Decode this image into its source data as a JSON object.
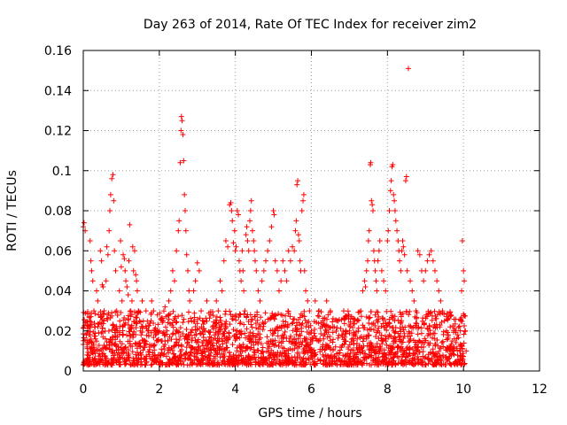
{
  "chart_data": {
    "type": "scatter",
    "title": "Day 263 of 2014, Rate Of TEC Index for receiver zim2",
    "xlabel": "GPS time / hours",
    "ylabel": "ROTI / TECUs",
    "xlim": [
      0,
      12
    ],
    "ylim": [
      0,
      0.16
    ],
    "xticks": [
      0,
      2,
      4,
      6,
      8,
      10,
      12
    ],
    "yticks": [
      0,
      0.02,
      0.04,
      0.06,
      0.08,
      0.1,
      0.12,
      0.14,
      0.16
    ],
    "xtick_labels": [
      "0",
      "2",
      "4",
      "6",
      "8",
      "10",
      "12"
    ],
    "ytick_labels": [
      "0",
      "0.02",
      "0.04",
      "0.06",
      "0.08",
      "0.1",
      "0.12",
      "0.14",
      "0.16"
    ],
    "grid": true,
    "marker": "+",
    "color": "#ff0000",
    "series": [
      {
        "name": "ROTI",
        "points": [
          [
            0.0,
            0.072
          ],
          [
            0.02,
            0.074
          ],
          [
            0.05,
            0.07
          ],
          [
            0.08,
            0.018
          ],
          [
            0.1,
            0.012
          ],
          [
            0.12,
            0.02
          ],
          [
            0.15,
            0.014
          ],
          [
            0.18,
            0.065
          ],
          [
            0.2,
            0.055
          ],
          [
            0.22,
            0.05
          ],
          [
            0.25,
            0.045
          ],
          [
            0.28,
            0.03
          ],
          [
            0.3,
            0.022
          ],
          [
            0.32,
            0.016
          ],
          [
            0.35,
            0.04
          ],
          [
            0.38,
            0.035
          ],
          [
            0.4,
            0.028
          ],
          [
            0.42,
            0.01
          ],
          [
            0.45,
            0.06
          ],
          [
            0.48,
            0.055
          ],
          [
            0.5,
            0.043
          ],
          [
            0.52,
            0.042
          ],
          [
            0.55,
            0.03
          ],
          [
            0.58,
            0.005
          ],
          [
            0.6,
            0.045
          ],
          [
            0.62,
            0.062
          ],
          [
            0.65,
            0.058
          ],
          [
            0.68,
            0.07
          ],
          [
            0.7,
            0.08
          ],
          [
            0.72,
            0.088
          ],
          [
            0.75,
            0.096
          ],
          [
            0.78,
            0.098
          ],
          [
            0.8,
            0.085
          ],
          [
            0.82,
            0.06
          ],
          [
            0.85,
            0.05
          ],
          [
            0.88,
            0.03
          ],
          [
            0.9,
            0.02
          ],
          [
            0.92,
            0.012
          ],
          [
            0.95,
            0.04
          ],
          [
            0.98,
            0.065
          ],
          [
            1.0,
            0.052
          ],
          [
            1.02,
            0.035
          ],
          [
            1.05,
            0.058
          ],
          [
            1.08,
            0.056
          ],
          [
            1.1,
            0.05
          ],
          [
            1.12,
            0.045
          ],
          [
            1.15,
            0.042
          ],
          [
            1.18,
            0.038
          ],
          [
            1.2,
            0.055
          ],
          [
            1.22,
            0.073
          ],
          [
            1.25,
            0.03
          ],
          [
            1.28,
            0.035
          ],
          [
            1.3,
            0.062
          ],
          [
            1.32,
            0.05
          ],
          [
            1.35,
            0.06
          ],
          [
            1.38,
            0.048
          ],
          [
            1.4,
            0.045
          ],
          [
            1.42,
            0.04
          ],
          [
            1.45,
            0.03
          ],
          [
            1.48,
            0.025
          ],
          [
            1.5,
            0.02
          ],
          [
            1.52,
            0.018
          ],
          [
            1.55,
            0.035
          ],
          [
            1.58,
            0.025
          ],
          [
            1.6,
            0.015
          ],
          [
            1.65,
            0.03
          ],
          [
            1.7,
            0.02
          ],
          [
            1.75,
            0.012
          ],
          [
            1.8,
            0.035
          ],
          [
            1.85,
            0.03
          ],
          [
            1.9,
            0.018
          ],
          [
            1.95,
            0.028
          ],
          [
            2.0,
            0.02
          ],
          [
            2.05,
            0.015
          ],
          [
            2.1,
            0.025
          ],
          [
            2.15,
            0.032
          ],
          [
            2.2,
            0.02
          ],
          [
            2.25,
            0.035
          ],
          [
            2.3,
            0.04
          ],
          [
            2.35,
            0.05
          ],
          [
            2.4,
            0.045
          ],
          [
            2.45,
            0.06
          ],
          [
            2.5,
            0.07
          ],
          [
            2.52,
            0.075
          ],
          [
            2.55,
            0.104
          ],
          [
            2.57,
            0.12
          ],
          [
            2.58,
            0.127
          ],
          [
            2.6,
            0.125
          ],
          [
            2.62,
            0.118
          ],
          [
            2.64,
            0.105
          ],
          [
            2.66,
            0.088
          ],
          [
            2.68,
            0.08
          ],
          [
            2.7,
            0.07
          ],
          [
            2.72,
            0.058
          ],
          [
            2.75,
            0.05
          ],
          [
            2.78,
            0.04
          ],
          [
            2.8,
            0.035
          ],
          [
            2.85,
            0.025
          ],
          [
            2.9,
            0.04
          ],
          [
            2.95,
            0.045
          ],
          [
            3.0,
            0.054
          ],
          [
            3.05,
            0.05
          ],
          [
            3.1,
            0.03
          ],
          [
            3.15,
            0.025
          ],
          [
            3.2,
            0.02
          ],
          [
            3.25,
            0.035
          ],
          [
            3.3,
            0.015
          ],
          [
            3.35,
            0.028
          ],
          [
            3.4,
            0.022
          ],
          [
            3.45,
            0.018
          ],
          [
            3.5,
            0.035
          ],
          [
            3.55,
            0.03
          ],
          [
            3.6,
            0.045
          ],
          [
            3.65,
            0.04
          ],
          [
            3.7,
            0.055
          ],
          [
            3.75,
            0.065
          ],
          [
            3.8,
            0.062
          ],
          [
            3.85,
            0.083
          ],
          [
            3.88,
            0.084
          ],
          [
            3.9,
            0.08
          ],
          [
            3.92,
            0.075
          ],
          [
            3.95,
            0.064
          ],
          [
            3.98,
            0.07
          ],
          [
            4.0,
            0.06
          ],
          [
            4.02,
            0.062
          ],
          [
            4.05,
            0.08
          ],
          [
            4.08,
            0.078
          ],
          [
            4.1,
            0.055
          ],
          [
            4.12,
            0.05
          ],
          [
            4.15,
            0.045
          ],
          [
            4.18,
            0.06
          ],
          [
            4.2,
            0.05
          ],
          [
            4.22,
            0.04
          ],
          [
            4.25,
            0.03
          ],
          [
            4.28,
            0.068
          ],
          [
            4.3,
            0.072
          ],
          [
            4.32,
            0.065
          ],
          [
            4.35,
            0.06
          ],
          [
            4.38,
            0.075
          ],
          [
            4.4,
            0.08
          ],
          [
            4.42,
            0.085
          ],
          [
            4.45,
            0.07
          ],
          [
            4.48,
            0.065
          ],
          [
            4.5,
            0.06
          ],
          [
            4.52,
            0.055
          ],
          [
            4.55,
            0.05
          ],
          [
            4.6,
            0.04
          ],
          [
            4.65,
            0.035
          ],
          [
            4.7,
            0.045
          ],
          [
            4.75,
            0.05
          ],
          [
            4.8,
            0.055
          ],
          [
            4.85,
            0.06
          ],
          [
            4.9,
            0.065
          ],
          [
            4.95,
            0.072
          ],
          [
            5.0,
            0.08
          ],
          [
            5.02,
            0.078
          ],
          [
            5.05,
            0.055
          ],
          [
            5.1,
            0.05
          ],
          [
            5.15,
            0.04
          ],
          [
            5.2,
            0.045
          ],
          [
            5.25,
            0.055
          ],
          [
            5.3,
            0.05
          ],
          [
            5.35,
            0.045
          ],
          [
            5.4,
            0.06
          ],
          [
            5.45,
            0.055
          ],
          [
            5.5,
            0.062
          ],
          [
            5.55,
            0.06
          ],
          [
            5.58,
            0.07
          ],
          [
            5.6,
            0.075
          ],
          [
            5.62,
            0.093
          ],
          [
            5.64,
            0.095
          ],
          [
            5.66,
            0.068
          ],
          [
            5.68,
            0.065
          ],
          [
            5.7,
            0.055
          ],
          [
            5.72,
            0.05
          ],
          [
            5.75,
            0.08
          ],
          [
            5.78,
            0.085
          ],
          [
            5.8,
            0.088
          ],
          [
            5.82,
            0.05
          ],
          [
            5.85,
            0.04
          ],
          [
            5.9,
            0.035
          ],
          [
            5.95,
            0.03
          ],
          [
            6.0,
            0.02
          ],
          [
            6.1,
            0.035
          ],
          [
            6.2,
            0.03
          ],
          [
            6.3,
            0.025
          ],
          [
            6.4,
            0.035
          ],
          [
            6.5,
            0.03
          ],
          [
            6.6,
            0.022
          ],
          [
            6.7,
            0.025
          ],
          [
            6.8,
            0.018
          ],
          [
            6.9,
            0.015
          ],
          [
            7.0,
            0.02
          ],
          [
            7.1,
            0.018
          ],
          [
            7.2,
            0.025
          ],
          [
            7.3,
            0.03
          ],
          [
            7.35,
            0.04
          ],
          [
            7.4,
            0.045
          ],
          [
            7.42,
            0.042
          ],
          [
            7.45,
            0.05
          ],
          [
            7.48,
            0.055
          ],
          [
            7.5,
            0.065
          ],
          [
            7.52,
            0.07
          ],
          [
            7.55,
            0.103
          ],
          [
            7.56,
            0.104
          ],
          [
            7.58,
            0.085
          ],
          [
            7.6,
            0.083
          ],
          [
            7.62,
            0.08
          ],
          [
            7.64,
            0.06
          ],
          [
            7.66,
            0.055
          ],
          [
            7.68,
            0.05
          ],
          [
            7.7,
            0.045
          ],
          [
            7.72,
            0.04
          ],
          [
            7.75,
            0.055
          ],
          [
            7.78,
            0.06
          ],
          [
            7.8,
            0.065
          ],
          [
            7.85,
            0.05
          ],
          [
            7.9,
            0.045
          ],
          [
            7.95,
            0.04
          ],
          [
            8.0,
            0.065
          ],
          [
            8.02,
            0.07
          ],
          [
            8.05,
            0.08
          ],
          [
            8.08,
            0.09
          ],
          [
            8.1,
            0.095
          ],
          [
            8.12,
            0.102
          ],
          [
            8.14,
            0.103
          ],
          [
            8.16,
            0.088
          ],
          [
            8.18,
            0.085
          ],
          [
            8.2,
            0.08
          ],
          [
            8.22,
            0.075
          ],
          [
            8.25,
            0.07
          ],
          [
            8.28,
            0.065
          ],
          [
            8.3,
            0.06
          ],
          [
            8.32,
            0.055
          ],
          [
            8.35,
            0.05
          ],
          [
            8.38,
            0.06
          ],
          [
            8.4,
            0.065
          ],
          [
            8.42,
            0.062
          ],
          [
            8.45,
            0.058
          ],
          [
            8.48,
            0.095
          ],
          [
            8.5,
            0.097
          ],
          [
            8.52,
            0.05
          ],
          [
            8.55,
            0.151
          ],
          [
            8.6,
            0.045
          ],
          [
            8.65,
            0.04
          ],
          [
            8.7,
            0.035
          ],
          [
            8.75,
            0.03
          ],
          [
            8.8,
            0.06
          ],
          [
            8.85,
            0.058
          ],
          [
            8.9,
            0.05
          ],
          [
            8.95,
            0.045
          ],
          [
            9.0,
            0.05
          ],
          [
            9.05,
            0.055
          ],
          [
            9.1,
            0.058
          ],
          [
            9.15,
            0.06
          ],
          [
            9.2,
            0.055
          ],
          [
            9.25,
            0.05
          ],
          [
            9.3,
            0.045
          ],
          [
            9.35,
            0.04
          ],
          [
            9.4,
            0.035
          ],
          [
            9.45,
            0.03
          ],
          [
            9.5,
            0.025
          ],
          [
            9.55,
            0.02
          ],
          [
            9.6,
            0.018
          ],
          [
            9.65,
            0.022
          ],
          [
            9.7,
            0.015
          ],
          [
            9.75,
            0.012
          ],
          [
            9.8,
            0.02
          ],
          [
            9.85,
            0.018
          ],
          [
            9.9,
            0.01
          ],
          [
            9.95,
            0.04
          ],
          [
            9.97,
            0.065
          ],
          [
            10.0,
            0.05
          ],
          [
            10.02,
            0.045
          ],
          [
            10.05,
            0.02
          ],
          [
            10.07,
            0.01
          ],
          [
            0.1,
            0.008
          ],
          [
            0.3,
            0.006
          ],
          [
            0.6,
            0.004
          ],
          [
            0.9,
            0.008
          ],
          [
            1.2,
            0.007
          ],
          [
            1.5,
            0.009
          ],
          [
            1.8,
            0.006
          ],
          [
            2.1,
            0.008
          ],
          [
            2.4,
            0.007
          ],
          [
            2.7,
            0.009
          ],
          [
            3.0,
            0.006
          ],
          [
            3.3,
            0.008
          ],
          [
            3.6,
            0.007
          ],
          [
            3.9,
            0.005
          ],
          [
            4.2,
            0.006
          ],
          [
            4.5,
            0.008
          ],
          [
            4.8,
            0.004
          ],
          [
            5.1,
            0.006
          ],
          [
            5.4,
            0.005
          ],
          [
            5.7,
            0.007
          ],
          [
            6.0,
            0.009
          ],
          [
            6.3,
            0.008
          ],
          [
            6.6,
            0.007
          ],
          [
            6.9,
            0.008
          ],
          [
            7.2,
            0.006
          ],
          [
            7.5,
            0.007
          ],
          [
            7.8,
            0.005
          ],
          [
            8.1,
            0.006
          ],
          [
            8.4,
            0.008
          ],
          [
            8.7,
            0.006
          ],
          [
            9.0,
            0.007
          ],
          [
            9.3,
            0.005
          ],
          [
            9.6,
            0.006
          ],
          [
            9.9,
            0.004
          ]
        ],
        "dense_band": {
          "x_range": [
            0.0,
            10.05
          ],
          "y_range": [
            0.003,
            0.03
          ],
          "count": 2200
        }
      }
    ]
  }
}
